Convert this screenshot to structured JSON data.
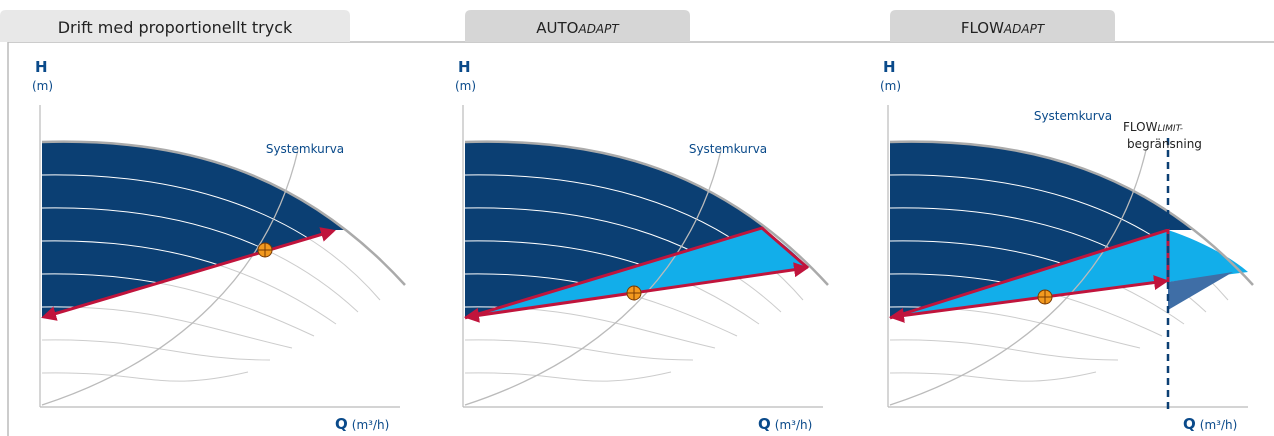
{
  "tabs": [
    {
      "text": "Drift med proportionellt tryck"
    },
    {
      "text": "AUTO",
      "italic": "ADAPT"
    },
    {
      "text": "FLOW",
      "italic": "ADAPT"
    }
  ],
  "panels": [
    {
      "y_label": "H",
      "y_unit": "(m)",
      "x_label": "Q",
      "x_unit": "(m³/h)",
      "curve_label": "Systemkurva"
    },
    {
      "y_label": "H",
      "y_unit": "(m)",
      "x_label": "Q",
      "x_unit": "(m³/h)",
      "curve_label": "Systemkurva"
    },
    {
      "y_label": "H",
      "y_unit": "(m)",
      "x_label": "Q",
      "x_unit": "(m³/h)",
      "curve_label": "Systemkurva"
    }
  ],
  "limit_label": {
    "text": "FLOW",
    "italic": "LIMIT-",
    "line2": "begränsning"
  }
}
